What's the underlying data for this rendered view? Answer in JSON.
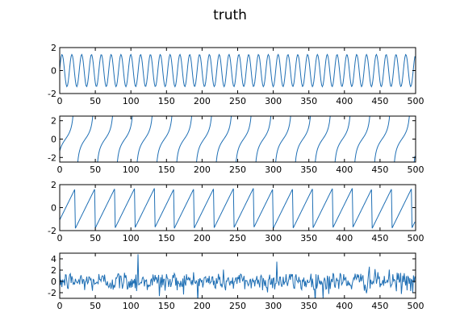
{
  "title": "truth",
  "line_color": "#1f6fb4",
  "chart_data": [
    {
      "type": "line",
      "name": "subplot-1-sine",
      "title": "",
      "xlabel": "",
      "ylabel": "",
      "xlim": [
        0,
        500
      ],
      "ylim": [
        -2,
        2
      ],
      "xticks": [
        0,
        50,
        100,
        150,
        200,
        250,
        300,
        350,
        400,
        450,
        500
      ],
      "yticks": [
        -2,
        0,
        2
      ],
      "grid": false,
      "series": [
        {
          "generator": "sine",
          "amplitude": 1.4,
          "period": 13.8,
          "phase_deg": 5,
          "n_points": 500
        }
      ]
    },
    {
      "type": "line",
      "name": "subplot-2-tan",
      "title": "",
      "xlabel": "",
      "ylabel": "",
      "xlim": [
        0,
        500
      ],
      "ylim": [
        -2.5,
        2.5
      ],
      "xticks": [
        0,
        50,
        100,
        150,
        200,
        250,
        300,
        350,
        400,
        450,
        500
      ],
      "yticks": [
        -2,
        0,
        2
      ],
      "grid": false,
      "series": [
        {
          "generator": "tan",
          "period": 27.8,
          "first_jump_x": 22,
          "n_points": 500
        }
      ]
    },
    {
      "type": "line",
      "name": "subplot-3-sawtooth",
      "title": "",
      "xlabel": "",
      "ylabel": "",
      "xlim": [
        0,
        500
      ],
      "ylim": [
        -2,
        2
      ],
      "xticks": [
        0,
        50,
        100,
        150,
        200,
        250,
        300,
        350,
        400,
        450,
        500
      ],
      "yticks": [
        -2,
        0,
        2
      ],
      "grid": false,
      "series": [
        {
          "generator": "sawtooth",
          "period": 27.8,
          "low": -1.8,
          "high": 1.7,
          "first_jump_x": 22,
          "n_points": 500
        }
      ]
    },
    {
      "type": "line",
      "name": "subplot-4-noise",
      "title": "",
      "xlabel": "",
      "ylabel": "",
      "xlim": [
        0,
        500
      ],
      "ylim": [
        -3,
        5
      ],
      "xticks": [
        0,
        50,
        100,
        150,
        200,
        250,
        300,
        350,
        400,
        450,
        500
      ],
      "yticks": [
        -2,
        0,
        2,
        4
      ],
      "grid": false,
      "series": [
        {
          "generator": "noise",
          "std": 0.9,
          "peaks": [
            [
              110,
              4.8
            ],
            [
              140,
              -2.6
            ],
            [
              305,
              3.5
            ],
            [
              370,
              -3.0
            ],
            [
              435,
              2.6
            ]
          ],
          "n_points": 500
        }
      ]
    }
  ]
}
